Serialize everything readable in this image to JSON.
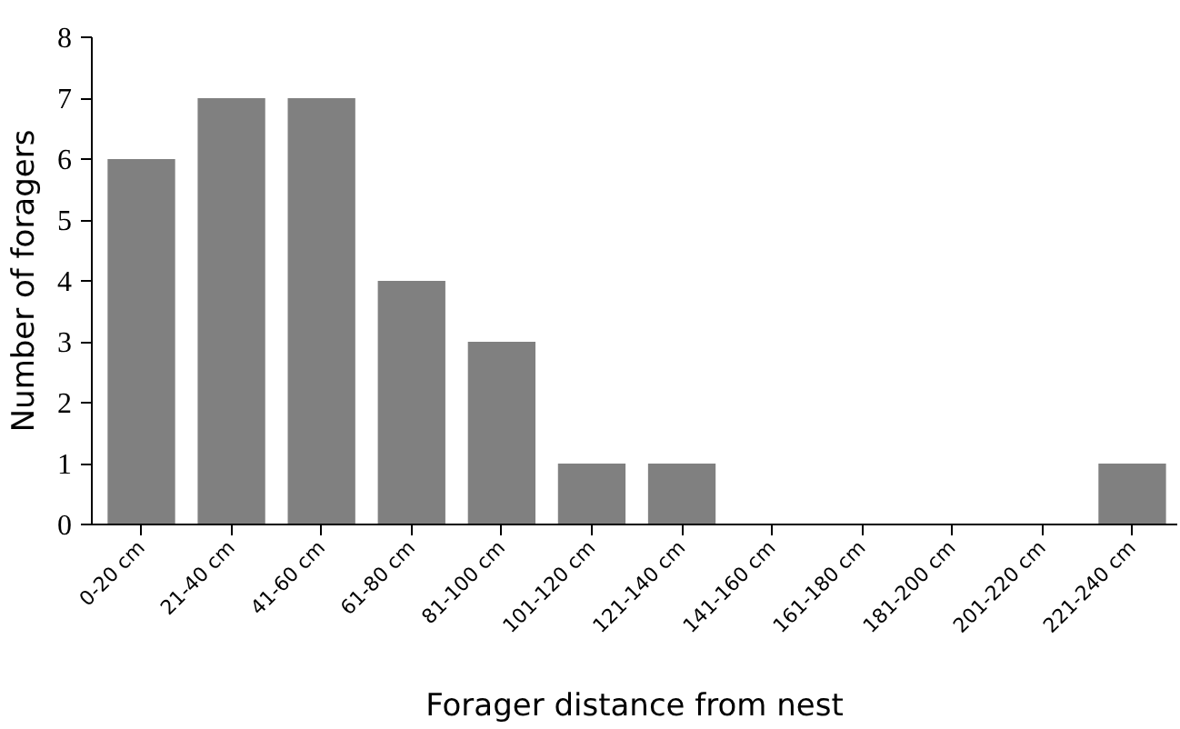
{
  "chart_data": {
    "type": "bar",
    "xlabel": "Forager distance from nest",
    "ylabel": "Number of foragers",
    "categories": [
      "0-20 cm",
      "21-40 cm",
      "41-60 cm",
      "61-80 cm",
      "81-100 cm",
      "101-120 cm",
      "121-140 cm",
      "141-160 cm",
      "161-180 cm",
      "181-200 cm",
      "201-220 cm",
      "221-240 cm"
    ],
    "values": [
      6,
      7,
      7,
      4,
      3,
      1,
      1,
      0,
      0,
      0,
      0,
      1
    ],
    "color": "#808080",
    "ylim": [
      0,
      8
    ],
    "yticks": [
      0,
      1,
      2,
      3,
      4,
      5,
      6,
      7,
      8
    ],
    "grid": false
  }
}
